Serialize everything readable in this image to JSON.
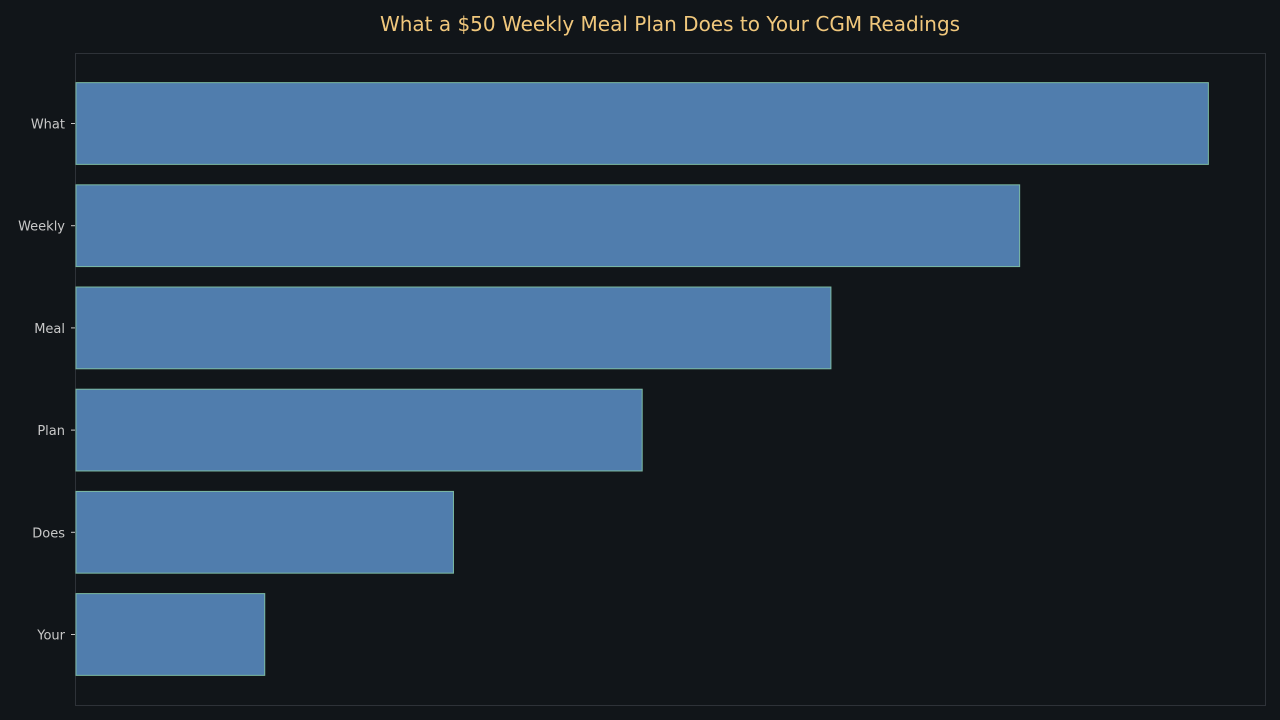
{
  "chart_data": {
    "type": "bar",
    "orientation": "horizontal",
    "title": "What a $50 Weekly Meal Plan Does to Your CGM Readings",
    "categories": [
      "What",
      "Weekly",
      "Meal",
      "Plan",
      "Does",
      "Your"
    ],
    "values": [
      6,
      5,
      4,
      3,
      2,
      1
    ],
    "xlabel": "",
    "ylabel": "",
    "xlim": [
      0,
      6.3
    ],
    "x_ticks_shown": false,
    "grid": false,
    "legend": "none",
    "colors": {
      "background": "#111519",
      "bar_fill": "#507dad",
      "bar_edge": "#7dbba3",
      "title": "#f0c77c",
      "axes_frame": "#2e3238",
      "tick_label": "#c8c8c8"
    }
  }
}
